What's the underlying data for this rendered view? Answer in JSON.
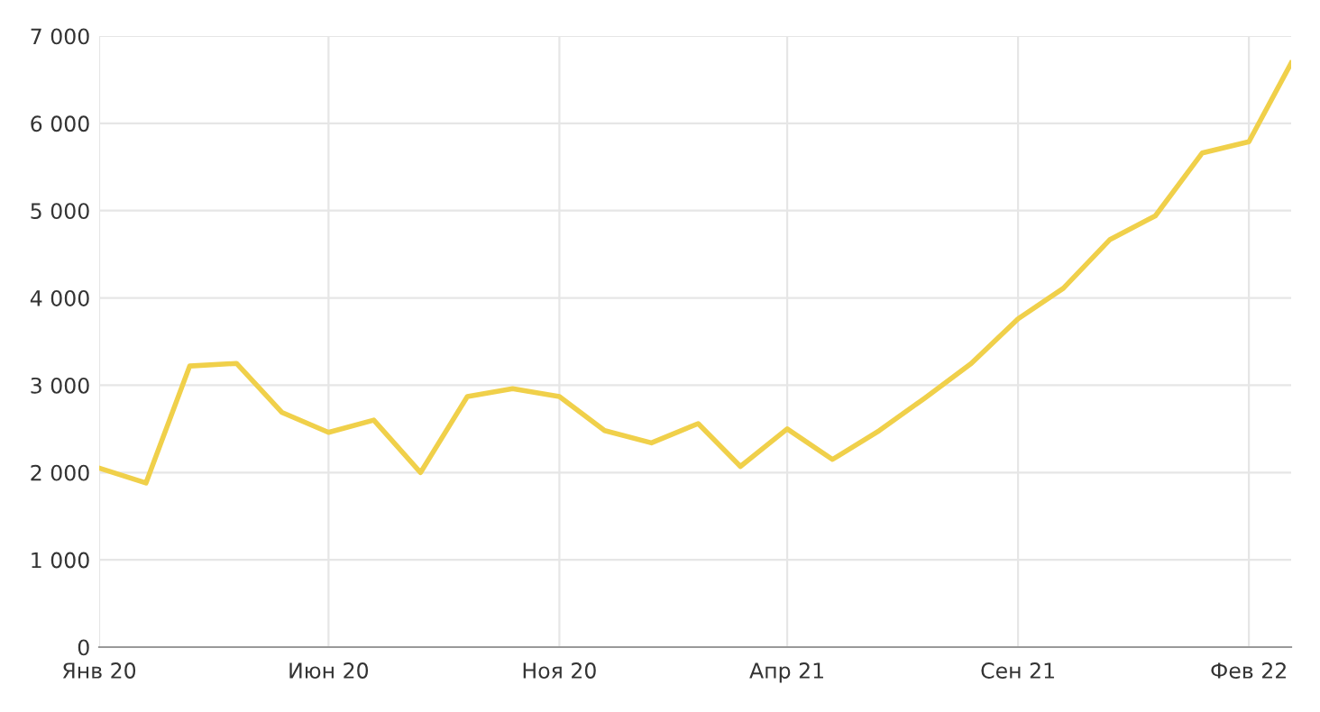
{
  "chart_data": {
    "type": "line",
    "color": "#f0d04a",
    "x": [
      "2020-01",
      "2020-02",
      "2020-03",
      "2020-04",
      "2020-05",
      "2020-06",
      "2020-07",
      "2020-08",
      "2020-09",
      "2020-10",
      "2020-11",
      "2020-12",
      "2021-01",
      "2021-02",
      "2021-03",
      "2021-04",
      "2021-05",
      "2021-06",
      "2021-07",
      "2021-08",
      "2021-09",
      "2021-10",
      "2021-11",
      "2021-12",
      "2022-01",
      "2022-02",
      "2022-03"
    ],
    "values": [
      2050,
      1880,
      3220,
      3250,
      2690,
      2460,
      2600,
      2000,
      2870,
      2960,
      2870,
      2480,
      2340,
      2560,
      2070,
      2500,
      2150,
      2480,
      2850,
      3250,
      3760,
      4110,
      4670,
      4940,
      5660,
      5790,
      6690
    ],
    "xlim": [
      "2020-01",
      "2022-03"
    ],
    "xticks": [
      {
        "value": "2020-01",
        "label": "Янв 20"
      },
      {
        "value": "2020-06",
        "label": "Июн 20"
      },
      {
        "value": "2020-11",
        "label": "Ноя 20"
      },
      {
        "value": "2021-04",
        "label": "Апр 21"
      },
      {
        "value": "2021-09",
        "label": "Сен 21"
      },
      {
        "value": "2022-02",
        "label": "Фев 22"
      }
    ],
    "ylim": [
      0,
      7000
    ],
    "yticks": [
      0,
      {
        "value": 1000,
        "label": "1 000"
      },
      {
        "value": 2000,
        "label": "2 000"
      },
      {
        "value": 3000,
        "label": "3 000"
      },
      {
        "value": 4000,
        "label": "4 000"
      },
      {
        "value": 5000,
        "label": "5 000"
      },
      {
        "value": 6000,
        "label": "6 000"
      },
      {
        "value": 7000,
        "label": "7 000"
      }
    ],
    "grid": true,
    "marker": "none",
    "line_style": "solid"
  }
}
